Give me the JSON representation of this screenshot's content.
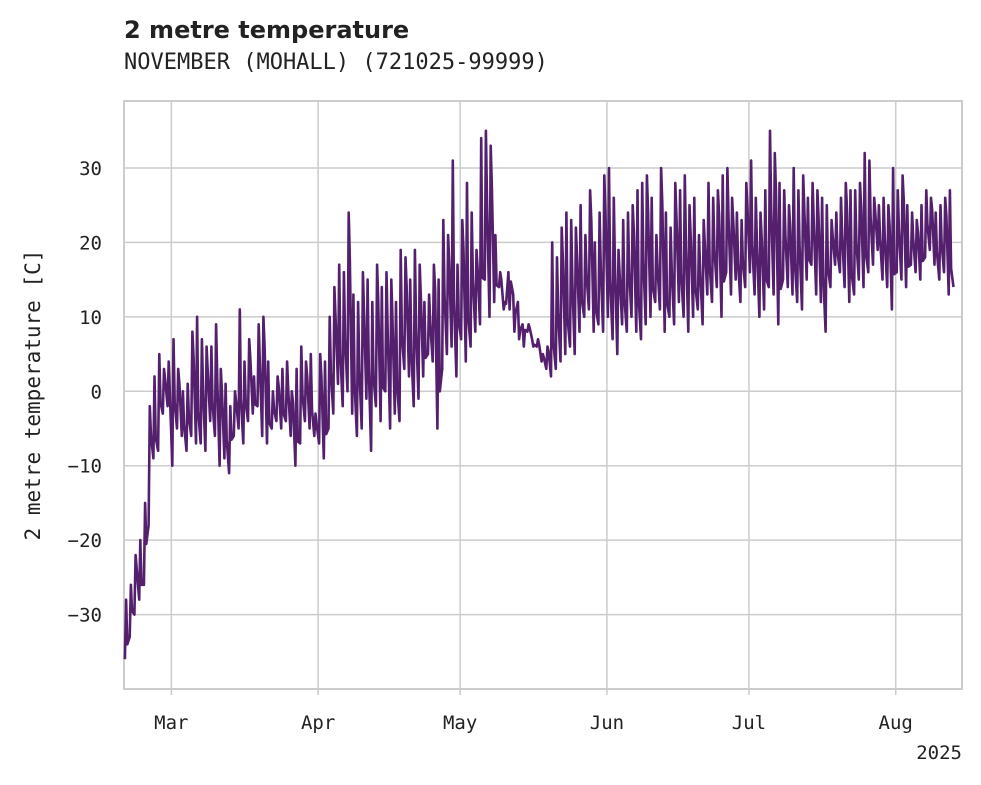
{
  "chart_data": {
    "type": "line",
    "title": "2 metre temperature",
    "subtitle": "NOVEMBER (MOHALL) (721025-99999)",
    "xlabel": "",
    "ylabel": "2 metre temperature [C]",
    "year_label": "2025",
    "x_ticks": [
      "Mar",
      "Apr",
      "May",
      "Jun",
      "Jul",
      "Aug"
    ],
    "y_ticks": [
      -30,
      -20,
      -10,
      0,
      10,
      20,
      30
    ],
    "xlim": [
      "2025-02-19",
      "2025-08-15"
    ],
    "ylim": [
      -40,
      39
    ],
    "grid": true,
    "series": [
      {
        "color": "#54206e",
        "x": [
          "2025-02-19",
          "2025-02-20",
          "2025-02-21",
          "2025-02-22",
          "2025-02-23",
          "2025-02-24",
          "2025-02-25",
          "2025-02-26",
          "2025-02-27",
          "2025-02-28",
          "2025-03-01",
          "2025-03-02",
          "2025-03-03",
          "2025-03-04",
          "2025-03-05",
          "2025-03-06",
          "2025-03-07",
          "2025-03-08",
          "2025-03-09",
          "2025-03-10",
          "2025-03-11",
          "2025-03-12",
          "2025-03-13",
          "2025-03-14",
          "2025-03-15",
          "2025-03-16",
          "2025-03-17",
          "2025-03-18",
          "2025-03-19",
          "2025-03-20",
          "2025-03-21",
          "2025-03-22",
          "2025-03-23",
          "2025-03-24",
          "2025-03-25",
          "2025-03-26",
          "2025-03-27",
          "2025-03-28",
          "2025-03-29",
          "2025-03-30",
          "2025-03-31",
          "2025-04-01",
          "2025-04-02",
          "2025-04-03",
          "2025-04-04",
          "2025-04-05",
          "2025-04-06",
          "2025-04-07",
          "2025-04-08",
          "2025-04-09",
          "2025-04-10",
          "2025-04-11",
          "2025-04-12",
          "2025-04-13",
          "2025-04-14",
          "2025-04-15",
          "2025-04-16",
          "2025-04-17",
          "2025-04-18",
          "2025-04-19",
          "2025-04-20",
          "2025-04-21",
          "2025-04-22",
          "2025-04-23",
          "2025-04-24",
          "2025-04-25",
          "2025-04-26",
          "2025-04-27",
          "2025-04-28",
          "2025-04-29",
          "2025-04-30",
          "2025-05-01",
          "2025-05-02",
          "2025-05-03",
          "2025-05-04",
          "2025-05-05",
          "2025-05-06",
          "2025-05-07",
          "2025-05-08",
          "2025-05-09",
          "2025-05-10",
          "2025-05-11",
          "2025-05-12",
          "2025-05-13",
          "2025-05-14",
          "2025-05-15",
          "2025-05-16",
          "2025-05-17",
          "2025-05-18",
          "2025-05-19",
          "2025-05-20",
          "2025-05-21",
          "2025-05-22",
          "2025-05-23",
          "2025-05-24",
          "2025-05-25",
          "2025-05-26",
          "2025-05-27",
          "2025-05-28",
          "2025-05-29",
          "2025-05-30",
          "2025-05-31",
          "2025-06-01",
          "2025-06-02",
          "2025-06-03",
          "2025-06-04",
          "2025-06-05",
          "2025-06-06",
          "2025-06-07",
          "2025-06-08",
          "2025-06-09",
          "2025-06-10",
          "2025-06-11",
          "2025-06-12",
          "2025-06-13",
          "2025-06-14",
          "2025-06-15",
          "2025-06-16",
          "2025-06-17",
          "2025-06-18",
          "2025-06-19",
          "2025-06-20",
          "2025-06-21",
          "2025-06-22",
          "2025-06-23",
          "2025-06-24",
          "2025-06-25",
          "2025-06-26",
          "2025-06-27",
          "2025-06-28",
          "2025-06-29",
          "2025-06-30",
          "2025-07-01",
          "2025-07-02",
          "2025-07-03",
          "2025-07-04",
          "2025-07-05",
          "2025-07-06",
          "2025-07-07",
          "2025-07-08",
          "2025-07-09",
          "2025-07-10",
          "2025-07-11",
          "2025-07-12",
          "2025-07-13",
          "2025-07-14",
          "2025-07-15",
          "2025-07-16",
          "2025-07-17",
          "2025-07-18",
          "2025-07-19",
          "2025-07-20",
          "2025-07-21",
          "2025-07-22",
          "2025-07-23",
          "2025-07-24",
          "2025-07-25",
          "2025-07-26",
          "2025-07-27",
          "2025-07-28",
          "2025-07-29",
          "2025-07-30",
          "2025-07-31",
          "2025-08-01",
          "2025-08-02",
          "2025-08-03",
          "2025-08-04",
          "2025-08-05",
          "2025-08-06",
          "2025-08-07",
          "2025-08-08",
          "2025-08-09",
          "2025-08-10",
          "2025-08-11",
          "2025-08-12",
          "2025-08-13",
          "2025-08-14",
          "2025-08-15"
        ],
        "lows": [
          -36,
          -33,
          -30,
          -28,
          -26,
          -18,
          -9,
          -8,
          -3,
          -2,
          -10,
          -5,
          -6,
          -8,
          -6,
          -7,
          -7,
          -8,
          -4,
          -6,
          -10,
          -9,
          -11,
          -6,
          -5,
          -7,
          -4,
          -3,
          -2,
          -6,
          -7,
          -5,
          -4,
          -5,
          -4,
          -6,
          -10,
          -7,
          -4,
          -5,
          -6,
          -7,
          -9,
          -5,
          -3,
          1,
          -2,
          0,
          -3,
          -6,
          -5,
          -1,
          -8,
          -2,
          -4,
          0,
          -5,
          -3,
          -4,
          3,
          2,
          -2,
          -1,
          2,
          5,
          4,
          -5,
          3,
          5,
          6,
          2,
          7,
          4,
          6,
          8,
          9,
          15,
          10,
          12,
          14,
          11,
          16,
          13,
          12,
          9,
          8,
          7,
          6,
          4,
          3,
          2,
          3,
          4,
          5,
          6,
          5,
          8,
          10,
          11,
          8,
          9,
          8,
          10,
          7,
          5,
          9,
          8,
          10,
          8,
          7,
          9,
          10,
          12,
          11,
          8,
          10,
          9,
          12,
          10,
          8,
          10,
          11,
          9,
          13,
          12,
          14,
          10,
          16,
          13,
          15,
          12,
          14,
          16,
          13,
          10,
          11,
          14,
          13,
          9,
          15,
          14,
          13,
          12,
          11,
          15,
          17,
          13,
          12,
          8,
          14,
          17,
          16,
          14,
          12,
          13,
          15,
          14,
          16,
          17,
          19,
          15,
          14,
          11,
          16,
          15,
          14,
          17,
          16,
          15,
          18,
          19,
          17,
          15,
          16,
          13,
          14,
          15,
          13,
          12,
          14,
          17
        ],
        "highs": [
          -28,
          -26,
          -22,
          -20,
          -15,
          -2,
          2,
          5,
          3,
          4,
          7,
          3,
          0,
          1,
          8,
          10,
          7,
          6,
          6,
          9,
          3,
          1,
          -2,
          0,
          11,
          4,
          7,
          2,
          9,
          10,
          4,
          0,
          2,
          3,
          4,
          0,
          3,
          6,
          4,
          5,
          -3,
          5,
          4,
          10,
          14,
          17,
          16,
          24,
          13,
          12,
          16,
          15,
          12,
          17,
          14,
          16,
          15,
          12,
          19,
          18,
          15,
          19,
          17,
          12,
          13,
          17,
          15,
          23,
          21,
          31,
          17,
          23,
          28,
          24,
          19,
          34,
          35,
          33,
          21,
          16,
          12,
          11,
          8,
          7,
          6,
          9,
          6,
          7,
          5,
          6,
          20,
          18,
          22,
          24,
          23,
          22,
          25,
          21,
          27,
          20,
          24,
          29,
          30,
          26,
          19,
          23,
          24,
          25,
          27,
          28,
          29,
          26,
          21,
          30,
          24,
          22,
          28,
          27,
          29,
          25,
          26,
          21,
          23,
          28,
          26,
          27,
          29,
          30,
          26,
          24,
          23,
          28,
          31,
          26,
          24,
          27,
          35,
          32,
          28,
          27,
          25,
          30,
          27,
          29,
          26,
          28,
          27,
          26,
          25,
          23,
          24,
          26,
          28,
          27,
          27,
          28,
          32,
          31,
          26,
          25,
          26,
          25,
          30,
          27,
          29,
          25,
          24,
          23,
          25,
          27,
          26,
          24,
          25,
          26,
          27
        ]
      }
    ]
  }
}
